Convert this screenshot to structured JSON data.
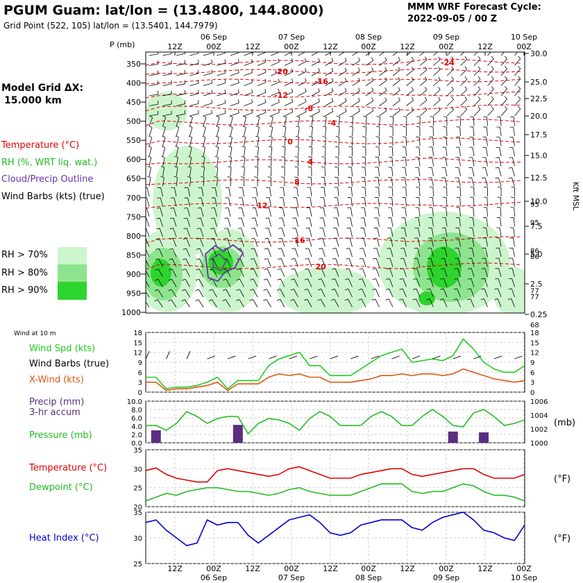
{
  "header": {
    "title": "PGUM Guam:  lat/lon = (13.4800, 144.8000)",
    "subtitle": "Grid Point (522, 105) lat/lon = (13.5401, 144.7979)",
    "cycle_line1": "MMM WRF Forecast Cycle:",
    "cycle_line2": "2022-09-05 / 00  Z"
  },
  "left_panel": {
    "model_grid_line1": "Model Grid ΔX:",
    "model_grid_line2": "15.000 km",
    "legend_temperature": "Temperature (°C)",
    "legend_rh": "RH (%, WRT liq. wat.)",
    "legend_cloud": "Cloud/Precip Outline",
    "legend_barbs": "Wind Barbs (kts) (true)",
    "rh70": "RH > 70%",
    "rh80": "RH > 80%",
    "rh90": "RH > 90%"
  },
  "colors": {
    "temperature": "#e00000",
    "rh70": "#cdf5cd",
    "rh80": "#8ee48e",
    "rh90": "#2ed42e",
    "cloud": "#6633aa",
    "wind_speed": "#22cc22",
    "xwind": "#dd5511",
    "precip": "#5a2d82",
    "pressure": "#22bb22",
    "dewpoint": "#22bb22",
    "heat_index": "#0000cc"
  },
  "time_axis": {
    "ticks": [
      "12Z",
      "00Z",
      "12Z",
      "00Z",
      "12Z",
      "00Z",
      "12Z",
      "00Z",
      "12Z",
      "00Z"
    ],
    "dates": [
      "06 Sep",
      "07 Sep",
      "08 Sep",
      "09 Sep",
      "10 Sep"
    ]
  },
  "chart_data": [
    {
      "type": "heatmap",
      "ylabel": "P (mb)",
      "y2label": "Kft MSL",
      "pressure_levels": [
        350,
        400,
        450,
        500,
        550,
        600,
        650,
        700,
        750,
        800,
        850,
        900,
        950,
        1000
      ],
      "kft_ticks": [
        "30.0",
        "25.0",
        "22.5",
        "20.0",
        "17.5",
        "15.0",
        "12.5",
        "10.0",
        "7.5",
        "5.0",
        "2.5",
        "0.25"
      ],
      "temperature_labels": [
        "-24",
        "-20",
        "-16",
        "-12",
        "-8",
        "-4",
        "0",
        "4",
        "8",
        "12",
        "16",
        "20"
      ]
    },
    {
      "type": "line",
      "title": "Wind at 10 m",
      "y_ticks": [
        "18",
        "15",
        "12",
        "9",
        "6",
        "3",
        "0"
      ],
      "ylim": [
        0,
        18
      ],
      "legend": [
        "Wind Spd (kts)",
        "Wind Barbs (true)",
        "X-Wind (kts)"
      ],
      "series": [
        {
          "name": "Wind Spd (kts)",
          "values": [
            4.5,
            4.5,
            1,
            1.5,
            1.5,
            2,
            3,
            4.5,
            1,
            3.5,
            3.5,
            3.5,
            8,
            10,
            11,
            12,
            8,
            8,
            5,
            5,
            5,
            7,
            9,
            11,
            12,
            13,
            9,
            9.5,
            10,
            9.5,
            11,
            16,
            13,
            9,
            7,
            6,
            6,
            8
          ]
        },
        {
          "name": "X-Wind (kts)",
          "values": [
            3,
            3,
            0.5,
            1,
            1,
            1.5,
            2,
            3,
            0.5,
            2.5,
            2.5,
            2.5,
            4.5,
            5.5,
            5,
            5.5,
            4.5,
            4.5,
            3,
            3,
            3,
            3.5,
            4,
            5,
            5,
            5.5,
            5,
            5.5,
            5.5,
            5,
            5.5,
            7,
            6,
            5,
            4,
            3.5,
            3,
            3.5
          ]
        }
      ]
    },
    {
      "type": "bar",
      "legend": [
        "Precip (mm)",
        "3-hr accum",
        "Pressure (mb)"
      ],
      "y_ticks": [
        "10.0",
        "8.0",
        "6.0",
        "4.0",
        "2.0",
        "0.0"
      ],
      "ylim": [
        0,
        10
      ],
      "y2_ticks": [
        "1006",
        "1004",
        "1002",
        "1000"
      ],
      "y2lim": [
        1000,
        1006
      ],
      "y2label": "(mb)",
      "series": [
        {
          "name": "Pressure (mb)",
          "values": [
            1002.5,
            1002.5,
            1001.8,
            1002.8,
            1004.5,
            1003.8,
            1002.8,
            1003.5,
            1003.8,
            1003.8,
            1001.3,
            1002.8,
            1003.5,
            1003.3,
            1002.8,
            1001.8,
            1003.5,
            1004.5,
            1003.8,
            1002.5,
            1002.5,
            1002.5,
            1003.8,
            1004.5,
            1003.8,
            1002.5,
            1002.5,
            1003.8,
            1004.8,
            1003.8,
            1002.5,
            1002.3,
            1004.3,
            1004.8,
            1003.8,
            1002.5,
            1002.8,
            1003.3
          ]
        },
        {
          "name": "Precip (mm)",
          "x_index": [
            1,
            9,
            30,
            33
          ],
          "values": [
            3,
            4.3,
            2.7,
            2.5
          ]
        }
      ]
    },
    {
      "type": "line",
      "legend": [
        "Temperature (°C)",
        "Dewpoint (°C)"
      ],
      "y_ticks": [
        "35",
        "30",
        "25",
        "20"
      ],
      "ylim": [
        20,
        35
      ],
      "y2_ticks": [
        "95",
        "86",
        "77",
        "68"
      ],
      "y2label": "(°F)",
      "series": [
        {
          "name": "Temperature (°C)",
          "values": [
            29.5,
            30.2,
            28.5,
            27.5,
            27,
            26.5,
            26.5,
            29.5,
            30,
            29.5,
            29,
            28.5,
            28,
            28.5,
            30,
            30.5,
            29.5,
            28.5,
            27.5,
            27.5,
            27.5,
            28.5,
            29,
            29.5,
            30,
            30,
            28.5,
            28,
            28.5,
            29,
            29.5,
            30,
            30,
            28.5,
            27.5,
            27.5,
            27.5,
            28.5
          ]
        },
        {
          "name": "Dewpoint (°C)",
          "values": [
            21.5,
            22.5,
            23.5,
            23,
            24,
            24.5,
            25,
            25,
            24.5,
            24,
            24,
            23.5,
            23,
            23.5,
            24.5,
            25,
            24,
            23.5,
            23,
            23,
            23,
            24,
            25,
            26,
            26,
            26,
            24,
            23.5,
            24,
            24,
            25,
            26,
            25.5,
            24,
            23,
            23,
            22.5,
            21.5
          ]
        }
      ]
    },
    {
      "type": "line",
      "legend": [
        "Heat Index (°C)"
      ],
      "y_ticks": [
        "35",
        "30",
        "25"
      ],
      "ylim": [
        25,
        35
      ],
      "y2_ticks": [
        "95",
        "86",
        "77"
      ],
      "y2label": "(°F)",
      "series": [
        {
          "name": "Heat Index (°C)",
          "values": [
            33,
            33.5,
            31.5,
            30,
            28.5,
            29,
            33.5,
            32.5,
            33,
            33,
            30.5,
            29,
            30.5,
            32,
            33.5,
            34,
            34.5,
            33,
            31,
            30.5,
            31,
            32.5,
            33,
            33.5,
            33.5,
            33.5,
            32,
            31.5,
            33,
            34,
            34.5,
            35,
            33.5,
            31.5,
            31,
            30,
            29.5,
            32.5
          ]
        }
      ]
    }
  ]
}
